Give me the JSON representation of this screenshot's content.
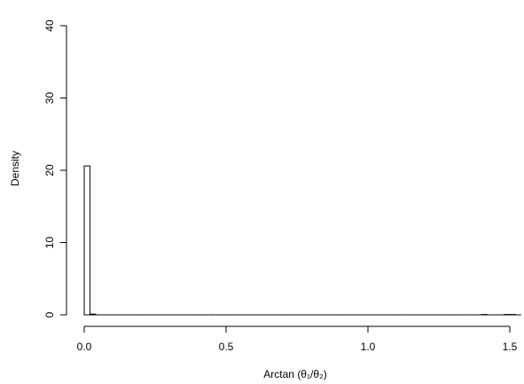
{
  "chart_data": {
    "type": "histogram",
    "x_label": "Arctan (θ₁/θ₂)",
    "y_label": "Density",
    "bins": [
      0,
      0.02,
      0.04,
      0.06,
      0.08,
      0.1,
      0.12,
      0.14,
      0.16,
      0.18,
      0.2,
      0.22,
      0.24,
      0.26,
      0.28,
      0.3,
      0.32,
      0.34,
      0.36,
      0.38,
      0.4,
      0.42,
      0.44,
      0.46,
      0.48,
      0.5,
      0.52,
      0.54,
      0.56,
      0.58,
      0.6,
      0.62,
      0.64,
      0.66,
      0.68,
      0.7,
      0.72,
      0.74,
      0.76,
      0.78,
      0.8,
      0.82,
      0.84,
      0.86,
      0.88,
      0.9,
      0.92,
      0.94,
      0.96,
      0.98,
      1,
      1.02,
      1.04,
      1.06,
      1.08,
      1.1,
      1.12,
      1.14,
      1.16,
      1.18,
      1.2,
      1.22,
      1.24,
      1.26,
      1.28,
      1.3,
      1.32,
      1.34,
      1.36,
      1.38,
      1.4,
      1.42,
      1.44,
      1.46,
      1.48,
      1.5,
      1.52,
      1.54
    ],
    "counts": [
      20.6,
      0.1,
      0,
      0,
      0,
      0,
      0,
      0,
      0,
      0,
      0,
      0,
      0,
      0,
      0,
      0,
      0,
      0,
      0,
      0,
      0,
      0,
      0,
      0,
      0,
      0,
      0,
      0,
      0,
      0,
      0,
      0,
      0,
      0,
      0,
      0,
      0,
      0,
      0,
      0,
      0,
      0,
      0,
      0,
      0,
      0,
      0,
      0,
      0,
      0,
      0,
      0,
      0,
      0,
      0,
      0,
      0,
      0,
      0,
      0,
      0,
      0,
      0,
      0,
      0,
      0,
      0,
      0,
      0,
      0,
      0.05,
      0,
      0,
      0,
      0.05,
      0.05,
      0
    ],
    "color": "#ffffff",
    "xlim": [
      0,
      1.5
    ],
    "ylim": [
      0,
      40
    ],
    "xticks": [
      {
        "value": 0,
        "label": "0.0"
      },
      {
        "value": 0.5,
        "label": "0.5"
      },
      {
        "value": 1,
        "label": "1.0"
      },
      {
        "value": 1.5,
        "label": "1.5"
      }
    ],
    "yticks": [
      0,
      10,
      20,
      30,
      40
    ]
  }
}
